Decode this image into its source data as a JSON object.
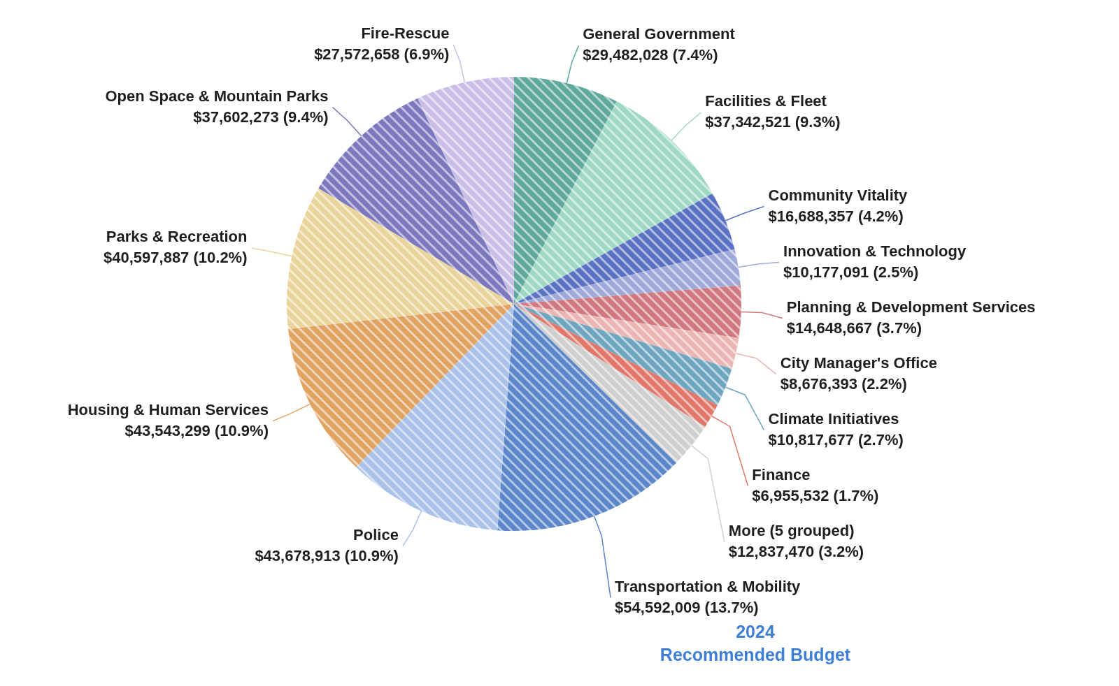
{
  "chart_data": {
    "type": "pie",
    "title": "2024 Recommended Budget",
    "categories": [
      "General Government",
      "Facilities & Fleet",
      "Community Vitality",
      "Innovation & Technology",
      "Planning & Development Services",
      "City Manager's Office",
      "Climate Initiatives",
      "Finance",
      "More (5 grouped)",
      "Transportation & Mobility",
      "Police",
      "Housing & Human Services",
      "Parks & Recreation",
      "Open Space & Mountain Parks",
      "Fire-Rescue"
    ],
    "values": [
      29482028,
      37342521,
      16688357,
      10177091,
      14648667,
      8676393,
      10817677,
      6955532,
      12837470,
      54592009,
      43678913,
      43543299,
      40597887,
      37602273,
      27572658
    ],
    "value_labels": [
      "$29,482,028 (7.4%)",
      "$37,342,521 (9.3%)",
      "$16,688,357 (4.2%)",
      "$10,177,091 (2.5%)",
      "$14,648,667 (3.7%)",
      "$8,676,393 (2.2%)",
      "$10,817,677 (2.7%)",
      "$6,955,532 (1.7%)",
      "$12,837,470 (3.2%)",
      "$54,592,009 (13.7%)",
      "$43,678,913 (10.9%)",
      "$43,543,299 (10.9%)",
      "$40,597,887 (10.2%)",
      "$37,602,273 (9.4%)",
      "$27,572,658 (6.9%)"
    ],
    "colors": [
      "#5fa89c",
      "#9fd9c3",
      "#5b72c4",
      "#9ea9da",
      "#cf7880",
      "#ebb5b4",
      "#6fa6bf",
      "#e0776a",
      "#cfcfcf",
      "#5b86c8",
      "#aac2ea",
      "#e1a362",
      "#e9d59c",
      "#7b78bd",
      "#c9bfe6"
    ],
    "data_labels": true
  }
}
